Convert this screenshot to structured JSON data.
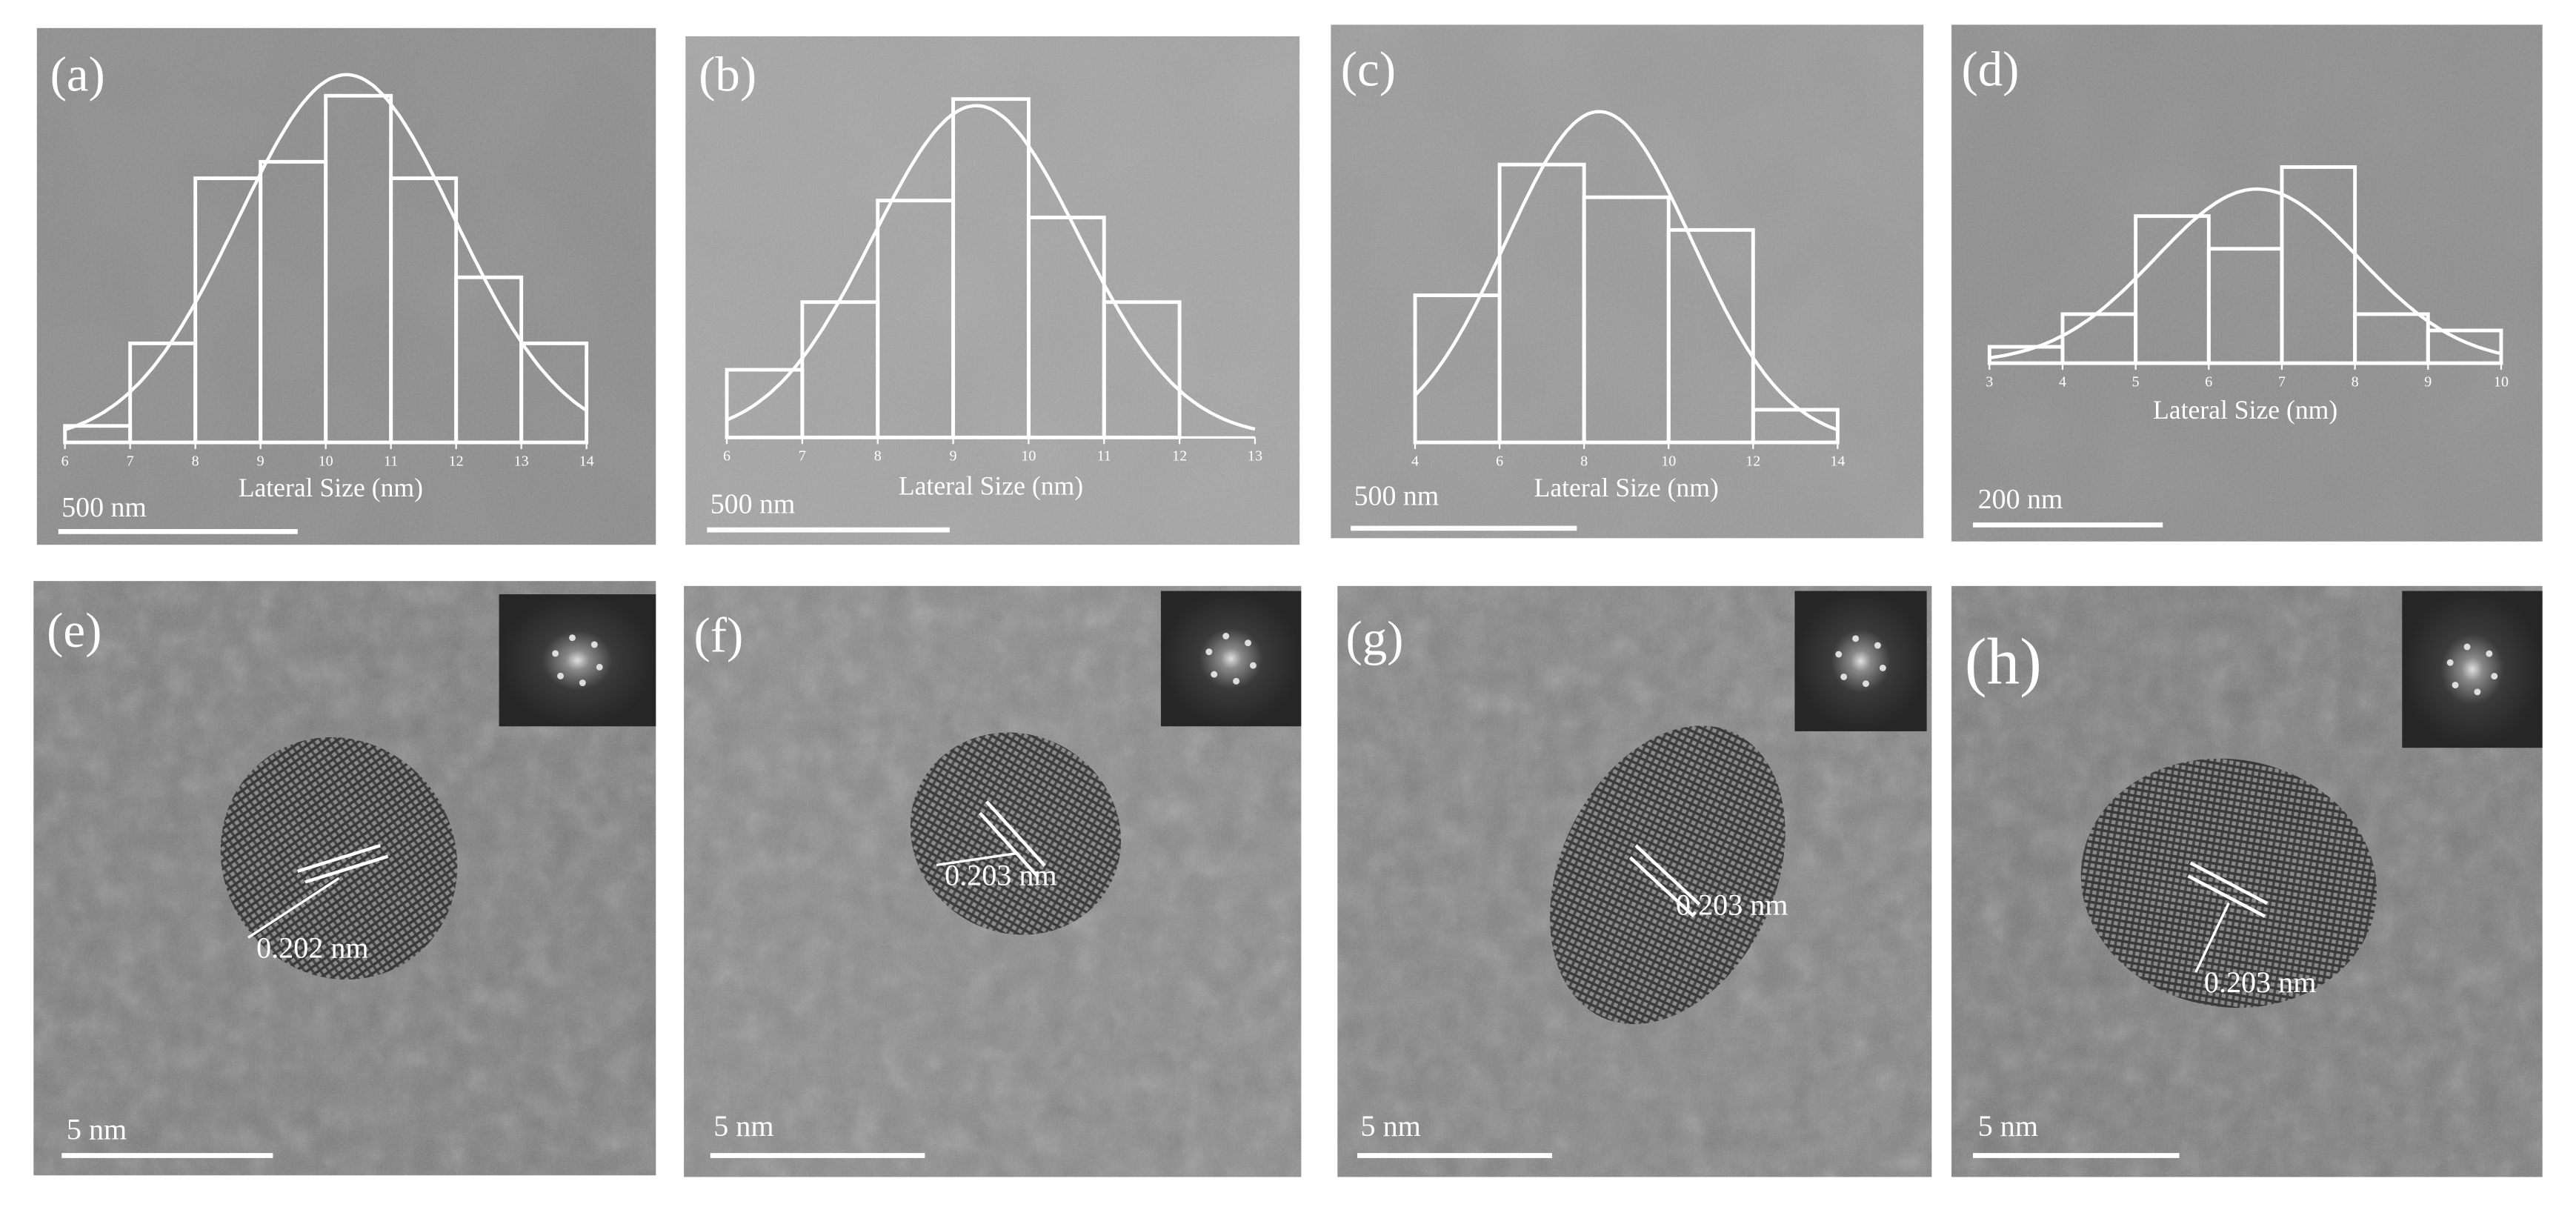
{
  "chart_data": [
    {
      "type": "histogram",
      "label": "(a)",
      "xlabel": "Lateral Size (nm)",
      "scale_bar": "500 nm",
      "xlim": [
        6,
        14
      ],
      "xticks": [
        6,
        7,
        8,
        9,
        10,
        11,
        12,
        13,
        14
      ],
      "bins": [
        6,
        7,
        8,
        9,
        10,
        11,
        12,
        13,
        14
      ],
      "values": [
        1,
        6,
        16,
        17,
        21,
        16,
        10,
        6
      ]
    },
    {
      "type": "histogram",
      "label": "(b)",
      "xlabel": "Lateral Size (nm)",
      "scale_bar": "500 nm",
      "xlim": [
        6,
        13
      ],
      "xticks": [
        6,
        7,
        8,
        9,
        10,
        11,
        12,
        13
      ],
      "bins": [
        6,
        7,
        8,
        9,
        10,
        11,
        12
      ],
      "values": [
        4,
        8,
        14,
        20,
        13,
        8
      ]
    },
    {
      "type": "histogram",
      "label": "(c)",
      "xlabel": "Lateral Size (nm)",
      "scale_bar": "500 nm",
      "xlim": [
        4,
        14
      ],
      "xticks": [
        4,
        6,
        8,
        10,
        12,
        14
      ],
      "bins": [
        4,
        6,
        8,
        10,
        12,
        14
      ],
      "values": [
        9,
        17,
        15,
        13,
        2
      ]
    },
    {
      "type": "histogram",
      "label": "(d)",
      "xlabel": "Lateral Size (nm)",
      "scale_bar": "200 nm",
      "xlim": [
        3,
        10
      ],
      "xticks": [
        3,
        4,
        5,
        6,
        7,
        8,
        9,
        10
      ],
      "bins": [
        3,
        4,
        5,
        6,
        7,
        8,
        9,
        10
      ],
      "values": [
        1,
        3,
        9,
        7,
        12,
        3,
        2
      ]
    }
  ],
  "panels": [
    {
      "label": "(e)",
      "annotation": "0.202 nm",
      "scale_bar": "5 nm"
    },
    {
      "label": "(f)",
      "annotation": "0.203 nm",
      "scale_bar": "5 nm"
    },
    {
      "label": "(g)",
      "annotation": "0.203 nm",
      "scale_bar": "5 nm"
    },
    {
      "label": "(h)",
      "annotation": "0.203 nm",
      "scale_bar": "5 nm"
    }
  ]
}
